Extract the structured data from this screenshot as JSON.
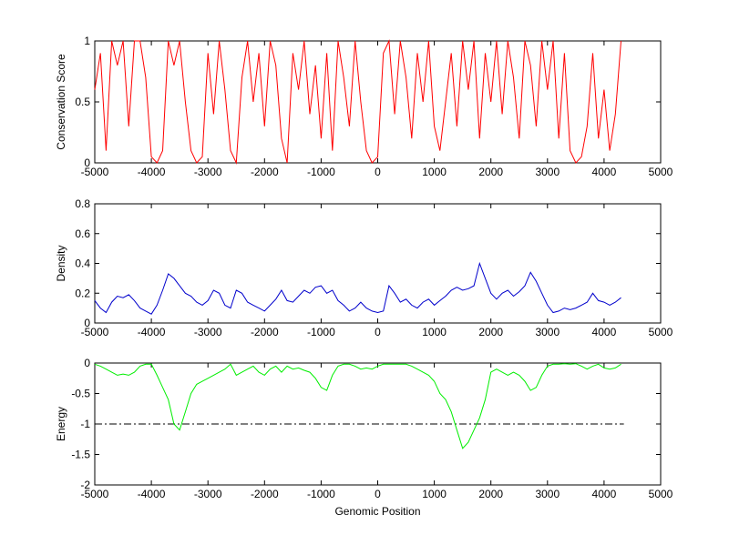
{
  "chart_data": [
    {
      "type": "line",
      "ylabel": "Conservation Score",
      "x": [
        -5000,
        -4900,
        -4800,
        -4700,
        -4600,
        -4500,
        -4400,
        -4300,
        -4200,
        -4100,
        -4000,
        -3900,
        -3800,
        -3700,
        -3600,
        -3500,
        -3400,
        -3300,
        -3200,
        -3100,
        -3000,
        -2900,
        -2800,
        -2700,
        -2600,
        -2500,
        -2400,
        -2300,
        -2200,
        -2100,
        -2000,
        -1900,
        -1800,
        -1700,
        -1600,
        -1500,
        -1400,
        -1300,
        -1200,
        -1100,
        -1000,
        -900,
        -800,
        -700,
        -600,
        -500,
        -400,
        -300,
        -200,
        -100,
        0,
        100,
        200,
        300,
        400,
        500,
        600,
        700,
        800,
        900,
        1000,
        1100,
        1200,
        1300,
        1400,
        1500,
        1600,
        1700,
        1800,
        1900,
        2000,
        2100,
        2200,
        2300,
        2400,
        2500,
        2600,
        2700,
        2800,
        2900,
        3000,
        3100,
        3200,
        3300,
        3400,
        3500,
        3600,
        3700,
        3800,
        3900,
        4000,
        4100,
        4200,
        4300
      ],
      "series": [
        {
          "color": "#ff0000",
          "values": [
            0.6,
            0.9,
            0.1,
            1,
            0.8,
            1,
            0.3,
            1,
            1,
            0.7,
            0.05,
            0,
            0.1,
            1,
            0.8,
            1,
            0.5,
            0.1,
            0,
            0.05,
            0.9,
            0.4,
            1,
            0.6,
            0.1,
            0,
            0.7,
            1,
            0.5,
            0.9,
            0.3,
            1,
            0.8,
            0.2,
            0,
            0.9,
            0.6,
            1,
            0.4,
            0.8,
            0.2,
            0.9,
            0.1,
            1,
            0.7,
            0.3,
            1,
            0.5,
            0.1,
            0,
            0.05,
            0.9,
            1,
            0.4,
            1,
            0.7,
            0.2,
            0.9,
            0.5,
            1,
            0.3,
            0.1,
            0.5,
            0.9,
            0.3,
            1,
            0.6,
            1,
            0.2,
            0.9,
            0.5,
            1,
            0.4,
            1,
            0.7,
            0.2,
            1,
            0.8,
            0.3,
            1,
            0.6,
            1,
            0.2,
            0.9,
            0.1,
            0,
            0.05,
            0.3,
            0.9,
            0.2,
            0.6,
            0.1,
            0.4,
            1
          ]
        }
      ],
      "xlim": [
        -5000,
        5000
      ],
      "xticks": [
        -5000,
        -4000,
        -3000,
        -2000,
        -1000,
        0,
        1000,
        2000,
        3000,
        4000,
        5000
      ],
      "ylim": [
        0,
        1
      ],
      "yticks": [
        0,
        0.5,
        1
      ]
    },
    {
      "type": "line",
      "ylabel": "Density",
      "x": [
        -5000,
        -4900,
        -4800,
        -4700,
        -4600,
        -4500,
        -4400,
        -4300,
        -4200,
        -4100,
        -4000,
        -3900,
        -3800,
        -3700,
        -3600,
        -3500,
        -3400,
        -3300,
        -3200,
        -3100,
        -3000,
        -2900,
        -2800,
        -2700,
        -2600,
        -2500,
        -2400,
        -2300,
        -2200,
        -2100,
        -2000,
        -1900,
        -1800,
        -1700,
        -1600,
        -1500,
        -1400,
        -1300,
        -1200,
        -1100,
        -1000,
        -900,
        -800,
        -700,
        -600,
        -500,
        -400,
        -300,
        -200,
        -100,
        0,
        100,
        200,
        300,
        400,
        500,
        600,
        700,
        800,
        900,
        1000,
        1100,
        1200,
        1300,
        1400,
        1500,
        1600,
        1700,
        1800,
        1900,
        2000,
        2100,
        2200,
        2300,
        2400,
        2500,
        2600,
        2700,
        2800,
        2900,
        3000,
        3100,
        3200,
        3300,
        3400,
        3500,
        3600,
        3700,
        3800,
        3900,
        4000,
        4100,
        4200,
        4300
      ],
      "series": [
        {
          "color": "#0000cc",
          "values": [
            0.15,
            0.1,
            0.07,
            0.14,
            0.18,
            0.17,
            0.19,
            0.15,
            0.1,
            0.08,
            0.06,
            0.12,
            0.22,
            0.33,
            0.3,
            0.25,
            0.2,
            0.18,
            0.14,
            0.12,
            0.15,
            0.22,
            0.2,
            0.12,
            0.1,
            0.22,
            0.2,
            0.14,
            0.12,
            0.1,
            0.08,
            0.12,
            0.16,
            0.22,
            0.15,
            0.14,
            0.18,
            0.22,
            0.2,
            0.24,
            0.25,
            0.2,
            0.22,
            0.15,
            0.12,
            0.08,
            0.1,
            0.14,
            0.1,
            0.08,
            0.07,
            0.08,
            0.25,
            0.2,
            0.14,
            0.16,
            0.12,
            0.1,
            0.14,
            0.16,
            0.12,
            0.15,
            0.18,
            0.22,
            0.24,
            0.22,
            0.23,
            0.25,
            0.4,
            0.3,
            0.2,
            0.16,
            0.2,
            0.22,
            0.18,
            0.21,
            0.25,
            0.34,
            0.28,
            0.2,
            0.12,
            0.07,
            0.08,
            0.1,
            0.09,
            0.1,
            0.12,
            0.14,
            0.2,
            0.15,
            0.14,
            0.12,
            0.14,
            0.17
          ]
        }
      ],
      "xlim": [
        -5000,
        5000
      ],
      "xticks": [
        -5000,
        -4000,
        -3000,
        -2000,
        -1000,
        0,
        1000,
        2000,
        3000,
        4000,
        5000
      ],
      "ylim": [
        0,
        0.8
      ],
      "yticks": [
        0,
        0.2,
        0.4,
        0.6,
        0.8
      ]
    },
    {
      "type": "line",
      "ylabel": "Energy",
      "xlabel": "Genomic Position",
      "x": [
        -5000,
        -4900,
        -4800,
        -4700,
        -4600,
        -4500,
        -4400,
        -4300,
        -4200,
        -4100,
        -4000,
        -3900,
        -3800,
        -3700,
        -3600,
        -3500,
        -3400,
        -3300,
        -3200,
        -3100,
        -3000,
        -2900,
        -2800,
        -2700,
        -2600,
        -2500,
        -2400,
        -2300,
        -2200,
        -2100,
        -2000,
        -1900,
        -1800,
        -1700,
        -1600,
        -1500,
        -1400,
        -1300,
        -1200,
        -1100,
        -1000,
        -900,
        -800,
        -700,
        -600,
        -500,
        -400,
        -300,
        -200,
        -100,
        0,
        100,
        200,
        300,
        400,
        500,
        600,
        700,
        800,
        900,
        1000,
        1100,
        1200,
        1300,
        1400,
        1500,
        1600,
        1700,
        1800,
        1900,
        2000,
        2100,
        2200,
        2300,
        2400,
        2500,
        2600,
        2700,
        2800,
        2900,
        3000,
        3100,
        3200,
        3300,
        3400,
        3500,
        3600,
        3700,
        3800,
        3900,
        4000,
        4100,
        4200,
        4300
      ],
      "series": [
        {
          "color": "#00ee00",
          "values": [
            -0.02,
            -0.05,
            -0.1,
            -0.15,
            -0.2,
            -0.18,
            -0.2,
            -0.15,
            -0.05,
            -0.02,
            -0.02,
            -0.2,
            -0.4,
            -0.6,
            -1.0,
            -1.1,
            -0.8,
            -0.5,
            -0.35,
            -0.3,
            -0.25,
            -0.2,
            -0.15,
            -0.1,
            -0.02,
            -0.2,
            -0.15,
            -0.1,
            -0.05,
            -0.15,
            -0.2,
            -0.1,
            -0.05,
            -0.15,
            -0.05,
            -0.1,
            -0.08,
            -0.12,
            -0.15,
            -0.25,
            -0.4,
            -0.45,
            -0.2,
            -0.05,
            -0.02,
            -0.02,
            -0.05,
            -0.1,
            -0.08,
            -0.1,
            -0.05,
            -0.02,
            -0.02,
            -0.02,
            -0.02,
            -0.02,
            -0.05,
            -0.1,
            -0.15,
            -0.2,
            -0.3,
            -0.5,
            -0.6,
            -0.8,
            -1.1,
            -1.4,
            -1.3,
            -1.1,
            -0.9,
            -0.6,
            -0.15,
            -0.1,
            -0.15,
            -0.2,
            -0.15,
            -0.2,
            -0.3,
            -0.45,
            -0.4,
            -0.2,
            -0.05,
            -0.02,
            -0.02,
            -0.01,
            -0.02,
            -0.01,
            -0.05,
            -0.1,
            -0.05,
            -0.02,
            -0.08,
            -0.1,
            -0.08,
            -0.02
          ]
        }
      ],
      "reference_line": {
        "y": -1,
        "x": [
          -5000,
          4350
        ],
        "color": "#000000"
      },
      "xlim": [
        -5000,
        5000
      ],
      "xticks": [
        -5000,
        -4000,
        -3000,
        -2000,
        -1000,
        0,
        1000,
        2000,
        3000,
        4000,
        5000
      ],
      "ylim": [
        -2,
        0
      ],
      "yticks": [
        -2,
        -1.5,
        -1,
        -0.5,
        0
      ]
    }
  ]
}
